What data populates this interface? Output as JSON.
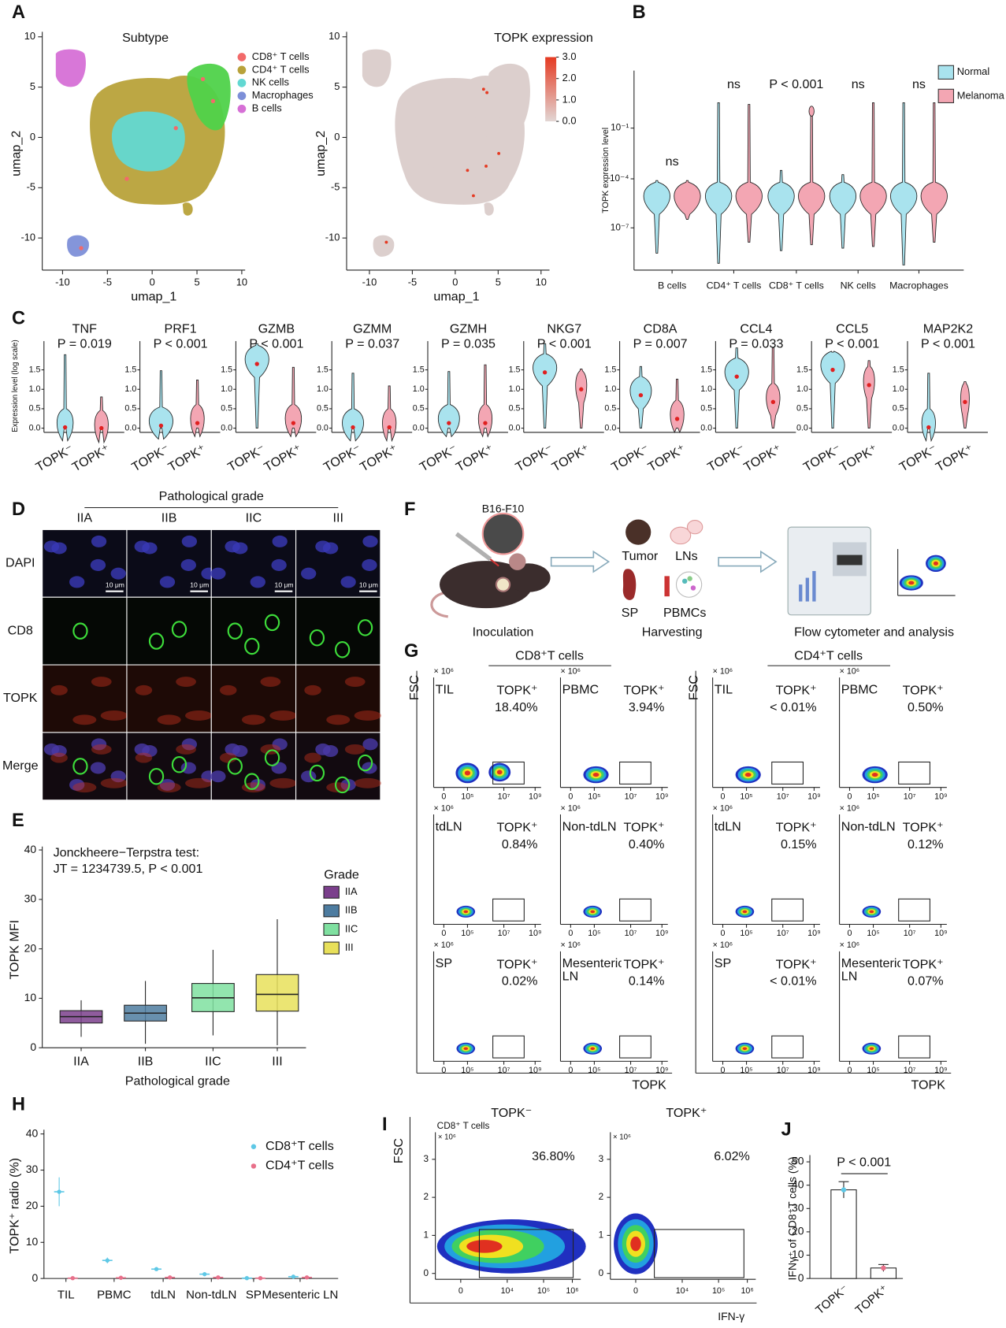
{
  "panel_labels": [
    "A",
    "B",
    "C",
    "D",
    "E",
    "F",
    "G",
    "H",
    "I",
    "J"
  ],
  "A": {
    "subtype": {
      "title": "Subtype",
      "xlabel": "umap_1",
      "ylabel": "umap_2",
      "xticks": [
        -10,
        -5,
        0,
        5,
        10
      ],
      "yticks": [
        -10,
        -5,
        0,
        5,
        10
      ],
      "legend": [
        {
          "name": "CD8⁺ T cells",
          "color": "#f26a6a"
        },
        {
          "name": "CD4⁺ T cells",
          "color": "#b8a23a"
        },
        {
          "name": "NK cells",
          "color": "#62d8d2"
        },
        {
          "name": "Macrophages",
          "color": "#7d8fd8"
        },
        {
          "name": "B cells",
          "color": "#d670d6"
        }
      ]
    },
    "expression": {
      "title": "TOPK expression",
      "xlabel": "umap_1",
      "ylabel": "umap_2",
      "xticks": [
        -10,
        -5,
        0,
        5,
        10
      ],
      "yticks": [
        -10,
        -5,
        0,
        5,
        10
      ],
      "colorbar_ticks": [
        {
          "value": 0,
          "label": "0.0"
        },
        {
          "value": 1,
          "label": "1.0"
        },
        {
          "value": 2,
          "label": "2.0"
        },
        {
          "value": 3,
          "label": "3.0"
        }
      ],
      "colorbar_colors": [
        "#e2d6d4",
        "#e53a22"
      ]
    }
  },
  "B": {
    "ylabel": "TOPK expression level",
    "yticks": [
      "10⁻⁷",
      "10⁻⁴",
      "10⁻¹"
    ],
    "categories": [
      "B cells",
      "CD4⁺ T cells",
      "CD8⁺ T cells",
      "NK cells",
      "Macrophages"
    ],
    "annotations": [
      "ns",
      "ns",
      "P < 0.001",
      "ns",
      "ns"
    ],
    "legend": [
      {
        "name": "Normal",
        "color": "#a9e3ee"
      },
      {
        "name": "Melanoma",
        "color": "#f3a6b3"
      }
    ]
  },
  "C": {
    "ylabel": "Expression level (log scale)",
    "yticks": [
      "0.0",
      "0.5",
      "1.0",
      "1.5"
    ],
    "groups": [
      "TOPK⁻",
      "TOPK⁺"
    ],
    "genes": [
      {
        "name": "TNF",
        "p": "P = 0.019"
      },
      {
        "name": "PRF1",
        "p": "P < 0.001"
      },
      {
        "name": "GZMB",
        "p": "P < 0.001"
      },
      {
        "name": "GZMM",
        "p": "P = 0.037"
      },
      {
        "name": "GZMH",
        "p": "P = 0.035"
      },
      {
        "name": "NKG7",
        "p": "P < 0.001"
      },
      {
        "name": "CD8A",
        "p": "P = 0.007"
      },
      {
        "name": "CCL4",
        "p": "P = 0.033"
      },
      {
        "name": "CCL5",
        "p": "P < 0.001"
      },
      {
        "name": "MAP2K2",
        "p": "P < 0.001"
      }
    ]
  },
  "D": {
    "header": "Pathological grade",
    "columns": [
      "IIA",
      "IIB",
      "IIC",
      "III"
    ],
    "rows": [
      "DAPI",
      "CD8",
      "TOPK",
      "Merge"
    ],
    "scale_bar": "10 μm"
  },
  "E": {
    "test": "Jonckheere−Terpstra test:",
    "statistic": "JT = 1234739.5, P < 0.001",
    "ylabel": "TOPK MFI",
    "xlabel": "Pathological grade",
    "ylim": [
      0,
      40
    ],
    "yticks": [
      0,
      10,
      20,
      30,
      40
    ],
    "legend_title": "Grade",
    "boxes": [
      {
        "name": "IIA",
        "color": "#7b3f8c",
        "low": 2.2,
        "q1": 5,
        "median": 6.3,
        "q3": 7.5,
        "high": 9.6
      },
      {
        "name": "IIB",
        "color": "#4d7ca0",
        "low": 0.8,
        "q1": 5.4,
        "median": 7,
        "q3": 8.6,
        "high": 13.5
      },
      {
        "name": "IIC",
        "color": "#7fe0a0",
        "low": 2.5,
        "q1": 7.3,
        "median": 10.1,
        "q3": 13,
        "high": 19.8
      },
      {
        "name": "III",
        "color": "#e8e05a",
        "low": 0.5,
        "q1": 7.4,
        "median": 10.8,
        "q3": 14.8,
        "high": 26
      }
    ]
  },
  "F": {
    "cell_line": "B16-F10",
    "tissues": [
      "Tumor",
      "LNs",
      "SP",
      "PBMCs"
    ],
    "steps": [
      "Inoculation",
      "Harvesting",
      "Flow cytometer and analysis"
    ]
  },
  "G": {
    "ylabel": "FSC",
    "xlabel": "TOPK",
    "y_multiplier": "× 10⁶",
    "xticks": [
      "0",
      "10⁵",
      "10⁷",
      "10⁹"
    ],
    "groups": [
      {
        "title": "CD8⁺T cells",
        "plots": [
          {
            "tissue": "TIL",
            "gate": "TOPK⁺",
            "percent": "18.40%"
          },
          {
            "tissue": "PBMC",
            "gate": "TOPK⁺",
            "percent": "3.94%"
          },
          {
            "tissue": "tdLN",
            "gate": "TOPK⁺",
            "percent": "0.84%"
          },
          {
            "tissue": "Non-tdLN",
            "gate": "TOPK⁺",
            "percent": "0.40%"
          },
          {
            "tissue": "SP",
            "gate": "TOPK⁺",
            "percent": "0.02%"
          },
          {
            "tissue": "Mesenteric LN",
            "gate": "TOPK⁺",
            "percent": "0.14%"
          }
        ]
      },
      {
        "title": "CD4⁺T cells",
        "plots": [
          {
            "tissue": "TIL",
            "gate": "TOPK⁺",
            "percent": "< 0.01%"
          },
          {
            "tissue": "PBMC",
            "gate": "TOPK⁺",
            "percent": "0.50%"
          },
          {
            "tissue": "tdLN",
            "gate": "TOPK⁺",
            "percent": "0.15%"
          },
          {
            "tissue": "Non-tdLN",
            "gate": "TOPK⁺",
            "percent": "0.12%"
          },
          {
            "tissue": "SP",
            "gate": "TOPK⁺",
            "percent": "< 0.01%"
          },
          {
            "tissue": "Mesenteric LN",
            "gate": "TOPK⁺",
            "percent": "0.07%"
          }
        ]
      }
    ]
  },
  "H": {
    "ylabel": "TOPK⁺ radio (%)",
    "categories": [
      "TIL",
      "PBMC",
      "tdLN",
      "Non-tdLN",
      "SP",
      "Mesenteric LN"
    ],
    "ylim": [
      0,
      40
    ],
    "yticks": [
      0,
      10,
      20,
      30,
      40
    ],
    "series": [
      {
        "name": "CD8⁺T cells",
        "color": "#5ec8e6",
        "values": [
          24,
          5,
          2.6,
          1.2,
          0.1,
          0.5
        ],
        "errors": [
          4,
          0.8,
          0.5,
          0.2,
          0.1,
          0.2
        ]
      },
      {
        "name": "CD4⁺T cells",
        "color": "#e8708a",
        "values": [
          0.1,
          0.2,
          0.3,
          0.3,
          0.1,
          0.3
        ],
        "errors": [
          0.1,
          0.1,
          0.1,
          0.1,
          0.1,
          0.2
        ]
      }
    ]
  },
  "I": {
    "subtitle": "CD8⁺ T cells",
    "ylabel": "FSC",
    "xlabel": "IFN-γ",
    "y_multiplier": "× 10⁶",
    "yticks": [
      0,
      1,
      2,
      3
    ],
    "xticks": [
      "0",
      "10⁴",
      "10⁵",
      "10⁶"
    ],
    "plots": [
      {
        "title": "TOPK⁻",
        "percent": "36.80%"
      },
      {
        "title": "TOPK⁺",
        "percent": "6.02%"
      }
    ]
  },
  "J": {
    "ylabel": "IFNγ⁺ of CD8⁺T cells (%)",
    "categories": [
      "TOPK⁻",
      "TOPK⁺"
    ],
    "values": [
      38,
      4.5
    ],
    "errors": [
      3.5,
      1.5
    ],
    "colors": [
      "#5ec8e6",
      "#e8708a"
    ],
    "ylim": [
      0,
      50
    ],
    "yticks": [
      0,
      10,
      20,
      30,
      40,
      50
    ],
    "annotation": "P < 0.001"
  }
}
